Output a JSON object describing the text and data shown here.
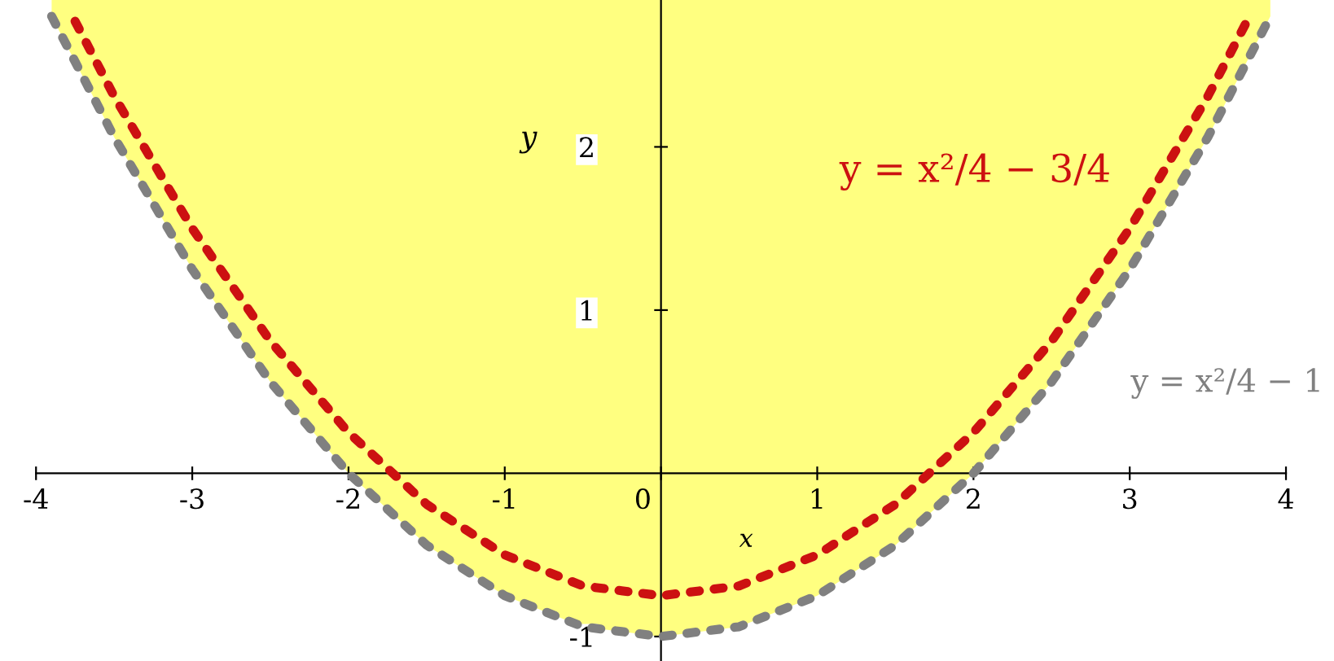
{
  "chart_data": {
    "type": "line",
    "xlabel": "x",
    "ylabel": "y",
    "xlim": [
      -4,
      4
    ],
    "ylim": [
      -1.15,
      2.9
    ],
    "xticks": [
      -4,
      -3,
      -2,
      -1,
      0,
      1,
      2,
      3,
      4
    ],
    "yticks": [
      -1,
      1,
      2
    ],
    "grid": false,
    "legend": false,
    "marker": "none",
    "line_style": "dotted",
    "series": [
      {
        "name": "y = x²/4 − 3/4",
        "color": "#cc1111",
        "x": [
          -3.75,
          -3.5,
          -3,
          -2.5,
          -2,
          -1.5,
          -1,
          -0.5,
          0,
          0.5,
          1,
          1.5,
          2,
          2.5,
          3,
          3.5,
          3.75
        ],
        "values": [
          2.77,
          2.31,
          1.5,
          0.81,
          0.25,
          -0.19,
          -0.5,
          -0.69,
          -0.75,
          -0.69,
          -0.5,
          -0.19,
          0.25,
          0.81,
          1.5,
          2.31,
          2.77
        ]
      },
      {
        "name": "y = x²/4 − 1",
        "color": "#808080",
        "x": [
          -3.9,
          -3.5,
          -3,
          -2.5,
          -2,
          -1.5,
          -1,
          -0.5,
          0,
          0.5,
          1,
          1.5,
          2,
          2.5,
          3,
          3.5,
          3.9
        ],
        "values": [
          2.8,
          2.06,
          1.25,
          0.56,
          0,
          -0.44,
          -0.75,
          -0.94,
          -1,
          -0.94,
          -0.75,
          -0.44,
          0,
          0.56,
          1.25,
          2.06,
          2.8
        ],
        "lower": [
          2.8,
          2.06,
          1.25,
          0.56,
          0,
          -0.44,
          -0.75,
          -0.94,
          -1,
          -0.94,
          -0.75,
          -0.44,
          0,
          0.56,
          1.25,
          2.06,
          2.8
        ],
        "upper": [
          2.9,
          2.9,
          2.9,
          2.9,
          2.9,
          2.9,
          2.9,
          2.9,
          2.9,
          2.9,
          2.9,
          2.9,
          2.9,
          2.9,
          2.9,
          2.9,
          2.9
        ]
      }
    ]
  }
}
